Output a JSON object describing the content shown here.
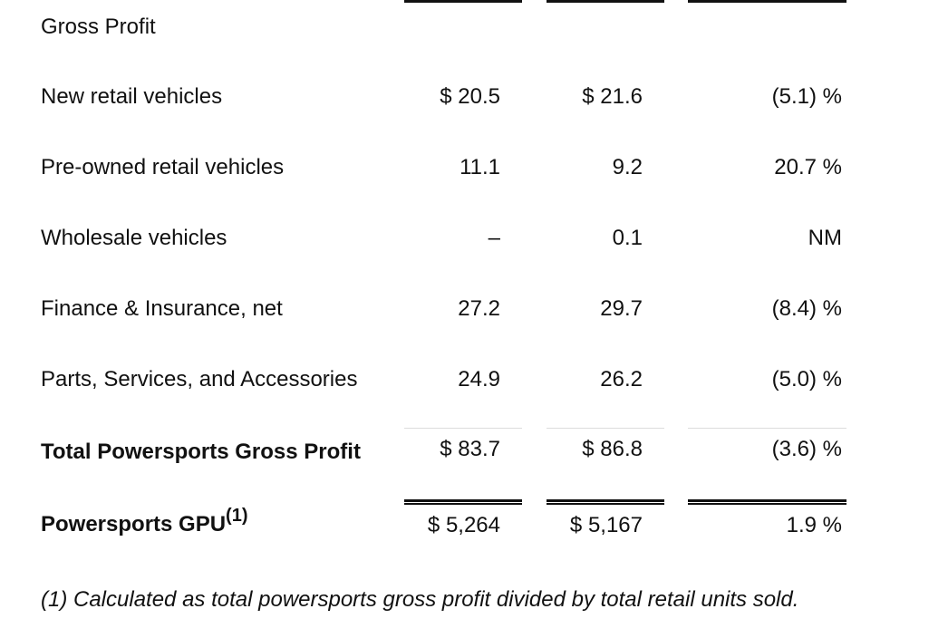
{
  "heading": "Gross Profit",
  "rows": [
    {
      "label": "New retail vehicles",
      "c1": "$ 20.5",
      "c2": "$ 21.6",
      "c3": "(5.1) %"
    },
    {
      "label": "Pre-owned retail vehicles",
      "c1": "11.1",
      "c2": "9.2",
      "c3": "20.7 %"
    },
    {
      "label": "Wholesale vehicles",
      "c1": "–",
      "c2": "0.1",
      "c3": "NM"
    },
    {
      "label": "Finance & Insurance, net",
      "c1": "27.2",
      "c2": "29.7",
      "c3": "(8.4) %"
    },
    {
      "label": "Parts, Services, and Accessories",
      "c1": "24.9",
      "c2": "26.2",
      "c3": "(5.0) %"
    }
  ],
  "total": {
    "label": "Total Powersports Gross Profit",
    "c1": "$ 83.7",
    "c2": "$ 86.8",
    "c3": "(3.6) %"
  },
  "gpu": {
    "label": "Powersports GPU",
    "footnote_ref": "(1)",
    "c1": "$ 5,264",
    "c2": "$ 5,167",
    "c3": "1.9 %"
  },
  "footnote": "(1) Calculated as total powersports gross profit divided by total retail units sold."
}
